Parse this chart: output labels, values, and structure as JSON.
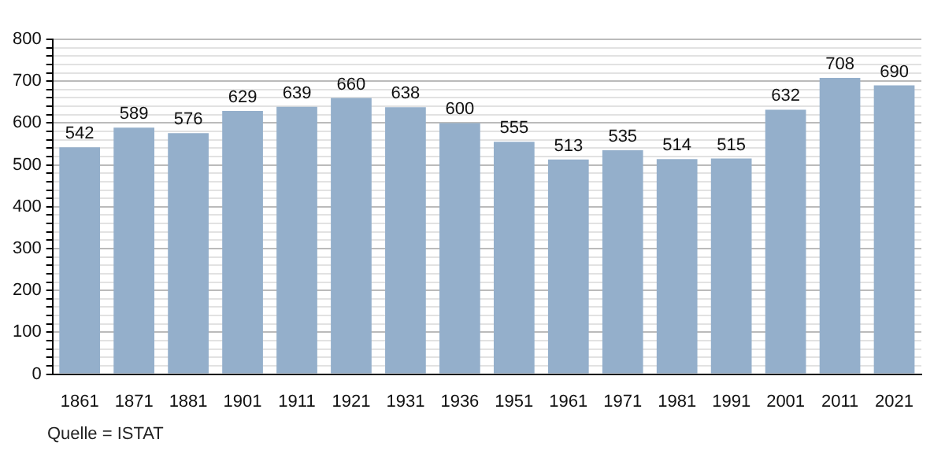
{
  "chart_data": {
    "type": "bar",
    "categories": [
      "1861",
      "1871",
      "1881",
      "1901",
      "1911",
      "1921",
      "1931",
      "1936",
      "1951",
      "1961",
      "1971",
      "1981",
      "1991",
      "2001",
      "2011",
      "2021"
    ],
    "values": [
      542,
      589,
      576,
      629,
      639,
      660,
      638,
      600,
      555,
      513,
      535,
      514,
      515,
      632,
      708,
      690
    ],
    "color": "#94afcb",
    "ylim": [
      0,
      800
    ],
    "yticks": [
      0,
      {
        "value": 20,
        "label": null
      },
      {
        "value": 40,
        "label": null
      },
      {
        "value": 60,
        "label": null
      },
      {
        "value": 80,
        "label": null
      },
      100,
      {
        "value": 120,
        "label": null
      },
      {
        "value": 140,
        "label": null
      },
      {
        "value": 160,
        "label": null
      },
      {
        "value": 180,
        "label": null
      },
      200,
      {
        "value": 220,
        "label": null
      },
      {
        "value": 240,
        "label": null
      },
      {
        "value": 260,
        "label": null
      },
      {
        "value": 280,
        "label": null
      },
      300,
      {
        "value": 320,
        "label": null
      },
      {
        "value": 340,
        "label": null
      },
      {
        "value": 360,
        "label": null
      },
      {
        "value": 380,
        "label": null
      },
      400,
      {
        "value": 420,
        "label": null
      },
      {
        "value": 440,
        "label": null
      },
      {
        "value": 460,
        "label": null
      },
      {
        "value": 480,
        "label": null
      },
      500,
      {
        "value": 520,
        "label": null
      },
      {
        "value": 540,
        "label": null
      },
      {
        "value": 560,
        "label": null
      },
      {
        "value": 580,
        "label": null
      },
      600,
      {
        "value": 620,
        "label": null
      },
      {
        "value": 640,
        "label": null
      },
      {
        "value": 660,
        "label": null
      },
      {
        "value": 680,
        "label": null
      },
      700,
      {
        "value": 720,
        "label": null
      },
      {
        "value": 740,
        "label": null
      },
      {
        "value": 760,
        "label": null
      },
      {
        "value": 780,
        "label": null
      },
      800
    ],
    "grid": "y",
    "data_labels": true,
    "annotations": [
      "Quelle = ISTAT"
    ]
  }
}
